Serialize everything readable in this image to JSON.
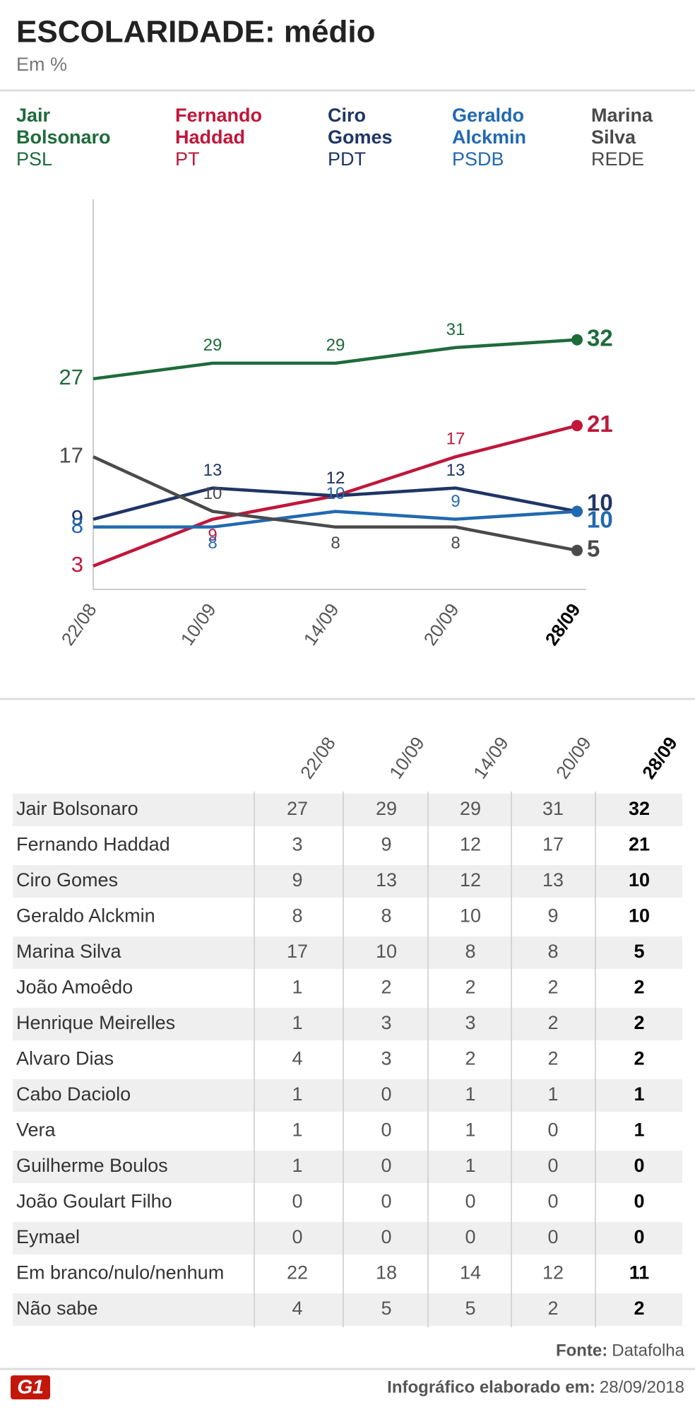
{
  "chart_data": {
    "type": "line",
    "title": "ESCOLARIDADE: médio",
    "subtitle": "Em %",
    "categories": [
      "22/08",
      "10/09",
      "14/09",
      "20/09",
      "28/09"
    ],
    "ylim": [
      0,
      50
    ],
    "series": [
      {
        "name": "Jair Bolsonaro",
        "party": "PSL",
        "color": "#1e6b3a",
        "values": [
          27,
          29,
          29,
          31,
          32
        ]
      },
      {
        "name": "Fernando Haddad",
        "party": "PT",
        "color": "#c0173a",
        "values": [
          3,
          9,
          12,
          17,
          21
        ]
      },
      {
        "name": "Ciro Gomes",
        "party": "PDT",
        "color": "#1f3566",
        "values": [
          9,
          13,
          12,
          13,
          10
        ]
      },
      {
        "name": "Geraldo Alckmin",
        "party": "PSDB",
        "color": "#2169b0",
        "values": [
          8,
          8,
          10,
          9,
          10
        ]
      },
      {
        "name": "Marina Silva",
        "party": "REDE",
        "color": "#4a4a4a",
        "values": [
          17,
          10,
          8,
          8,
          5
        ]
      }
    ]
  },
  "table": {
    "header": [
      "22/08",
      "10/09",
      "14/09",
      "20/09",
      "28/09"
    ],
    "rows": [
      [
        "Jair Bolsonaro",
        27,
        29,
        29,
        31,
        32
      ],
      [
        "Fernando Haddad",
        3,
        9,
        12,
        17,
        21
      ],
      [
        "Ciro Gomes",
        9,
        13,
        12,
        13,
        10
      ],
      [
        "Geraldo Alckmin",
        8,
        8,
        10,
        9,
        10
      ],
      [
        "Marina Silva",
        17,
        10,
        8,
        8,
        5
      ],
      [
        "João Amoêdo",
        1,
        2,
        2,
        2,
        2
      ],
      [
        "Henrique Meirelles",
        1,
        3,
        3,
        2,
        2
      ],
      [
        "Alvaro Dias",
        4,
        3,
        2,
        2,
        2
      ],
      [
        "Cabo Daciolo",
        1,
        0,
        1,
        1,
        1
      ],
      [
        "Vera",
        1,
        0,
        1,
        0,
        1
      ],
      [
        "Guilherme Boulos",
        1,
        0,
        1,
        0,
        0
      ],
      [
        "João Goulart Filho",
        0,
        0,
        0,
        0,
        0
      ],
      [
        "Eymael",
        0,
        0,
        0,
        0,
        0
      ],
      [
        "Em branco/nulo/nenhum",
        22,
        18,
        14,
        12,
        11
      ],
      [
        "Não sabe",
        4,
        5,
        5,
        2,
        2
      ]
    ]
  },
  "source": {
    "label": "Fonte:",
    "name": "Datafolha"
  },
  "footer": {
    "label": "Infográfico elaborado em:",
    "date": "28/09/2018",
    "logo": "G1"
  }
}
